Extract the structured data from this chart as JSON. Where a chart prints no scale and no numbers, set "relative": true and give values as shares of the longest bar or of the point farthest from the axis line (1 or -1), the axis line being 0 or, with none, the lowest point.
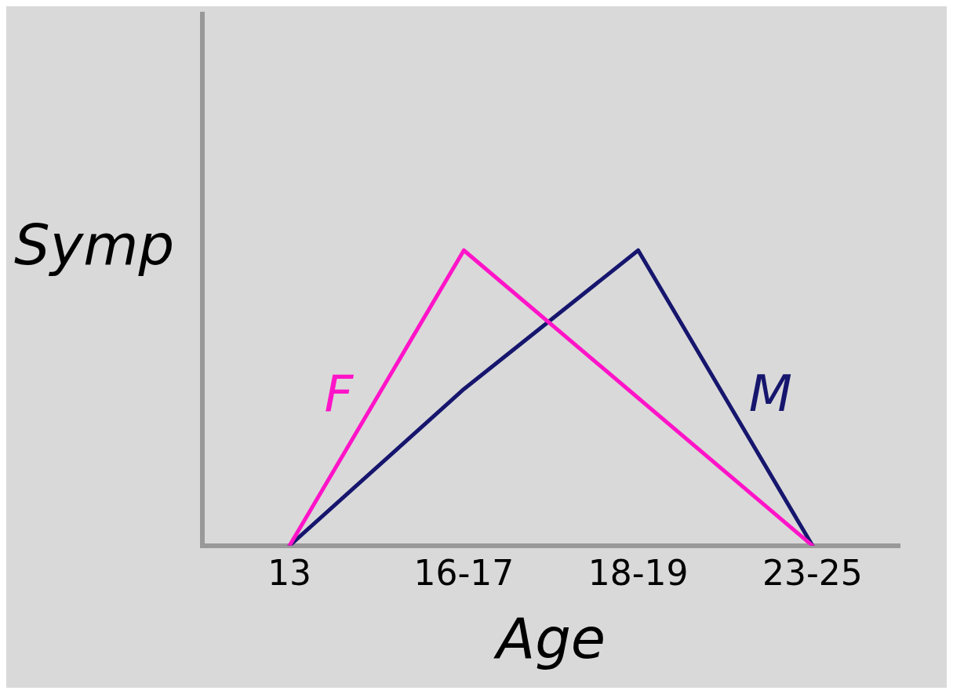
{
  "chart_data": {
    "type": "line",
    "relative": true,
    "xlabel": "Age",
    "ylabel": "Symp",
    "categories": [
      "13",
      "16-17",
      "18-19",
      "23-25"
    ],
    "series": [
      {
        "name": "F",
        "color": "#ff14c8",
        "values": [
          0,
          1,
          0.5,
          0
        ]
      },
      {
        "name": "M",
        "color": "#16166e",
        "values": [
          0,
          0.53,
          1,
          0
        ]
      }
    ],
    "grid": false,
    "legend": false,
    "marker": "none",
    "line_style": "solid"
  }
}
